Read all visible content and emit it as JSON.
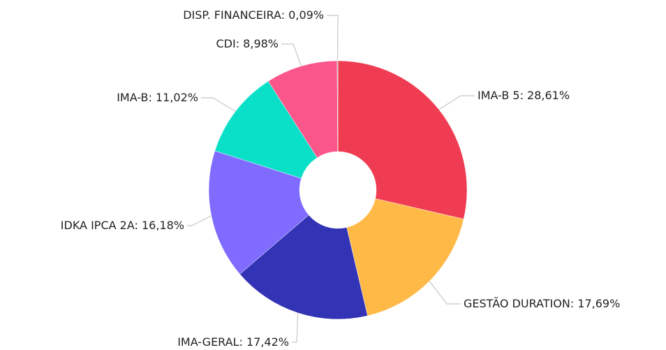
{
  "chart_data": {
    "type": "pie",
    "categories": [
      "IMA-B 5",
      "GESTÃO DURATION",
      "IMA-GERAL",
      "IDKA IPCA 2A",
      "IMA-B",
      "CDI",
      "DISP. FINANCEIRA"
    ],
    "values": [
      28.61,
      17.69,
      17.42,
      16.18,
      11.02,
      8.98,
      0.09
    ],
    "value_labels": [
      "28,61%",
      "17,69%",
      "17,42%",
      "16,18%",
      "11,02%",
      "8,98%",
      "0,09%"
    ],
    "separator": ": ",
    "colors": [
      "#f03c52",
      "#ffb946",
      "#3333b5",
      "#7f6cff",
      "#0ae0c8",
      "#fb568a",
      "#9e9e9e"
    ]
  }
}
